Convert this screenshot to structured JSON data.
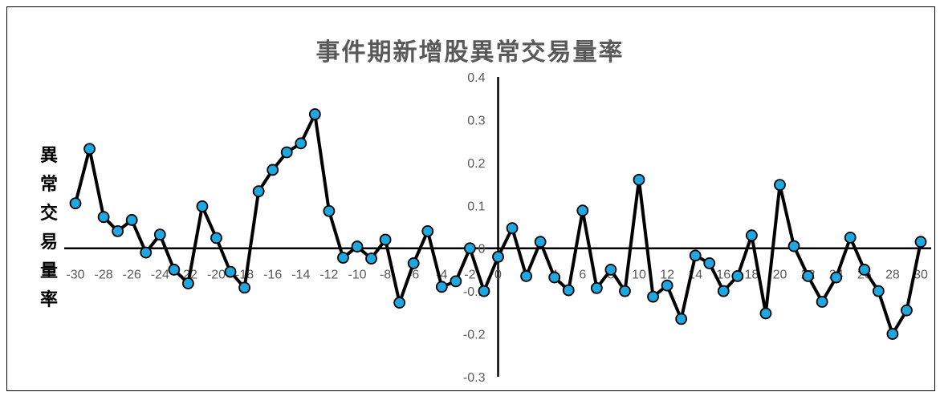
{
  "chart_data": {
    "type": "line",
    "title": "事件期新增股異常交易量率",
    "ylabel_chars": [
      "異",
      "常",
      "交",
      "易",
      "量",
      "率"
    ],
    "xlim": [
      -30,
      30
    ],
    "ylim": [
      -0.3,
      0.4
    ],
    "y_ticks": [
      "-0.3",
      "-0.2",
      "-0.1",
      "0",
      "0.1",
      "0.2",
      "0.3",
      "0.4"
    ],
    "x_ticks": [
      "-30",
      "-28",
      "-26",
      "-24",
      "-22",
      "-20",
      "-18",
      "-16",
      "-14",
      "-12",
      "-10",
      "-8",
      "-6",
      "-4",
      "-2",
      "0",
      "2",
      "4",
      "6",
      "8",
      "10",
      "12",
      "14",
      "16",
      "18",
      "20",
      "22",
      "24",
      "26",
      "28",
      "30"
    ],
    "line_color": "#000000",
    "marker_color": "#1FA7DF",
    "x": [
      -30,
      -29,
      -28,
      -27,
      -26,
      -25,
      -24,
      -23,
      -22,
      -21,
      -20,
      -19,
      -18,
      -17,
      -16,
      -15,
      -14,
      -13,
      -12,
      -11,
      -10,
      -9,
      -8,
      -7,
      -6,
      -5,
      -4,
      -3,
      -2,
      -1,
      0,
      1,
      2,
      3,
      4,
      5,
      6,
      7,
      8,
      9,
      10,
      11,
      12,
      13,
      14,
      15,
      16,
      17,
      18,
      19,
      20,
      21,
      22,
      23,
      24,
      25,
      26,
      27,
      28,
      29,
      30
    ],
    "values": [
      0.105,
      0.232,
      0.073,
      0.04,
      0.066,
      -0.01,
      0.032,
      -0.05,
      -0.082,
      0.098,
      0.024,
      -0.055,
      -0.092,
      0.133,
      0.183,
      0.224,
      0.245,
      0.313,
      0.087,
      -0.022,
      0.004,
      -0.024,
      0.02,
      -0.127,
      -0.035,
      0.04,
      -0.09,
      -0.077,
      0.0,
      -0.1,
      -0.02,
      0.047,
      -0.065,
      0.015,
      -0.068,
      -0.098,
      0.088,
      -0.093,
      -0.05,
      -0.1,
      0.16,
      -0.113,
      -0.087,
      -0.165,
      -0.017,
      -0.035,
      -0.1,
      -0.065,
      0.03,
      -0.152,
      0.148,
      0.005,
      -0.065,
      -0.125,
      -0.068,
      0.025,
      -0.05,
      -0.1,
      -0.2,
      -0.145,
      0.015
    ]
  }
}
